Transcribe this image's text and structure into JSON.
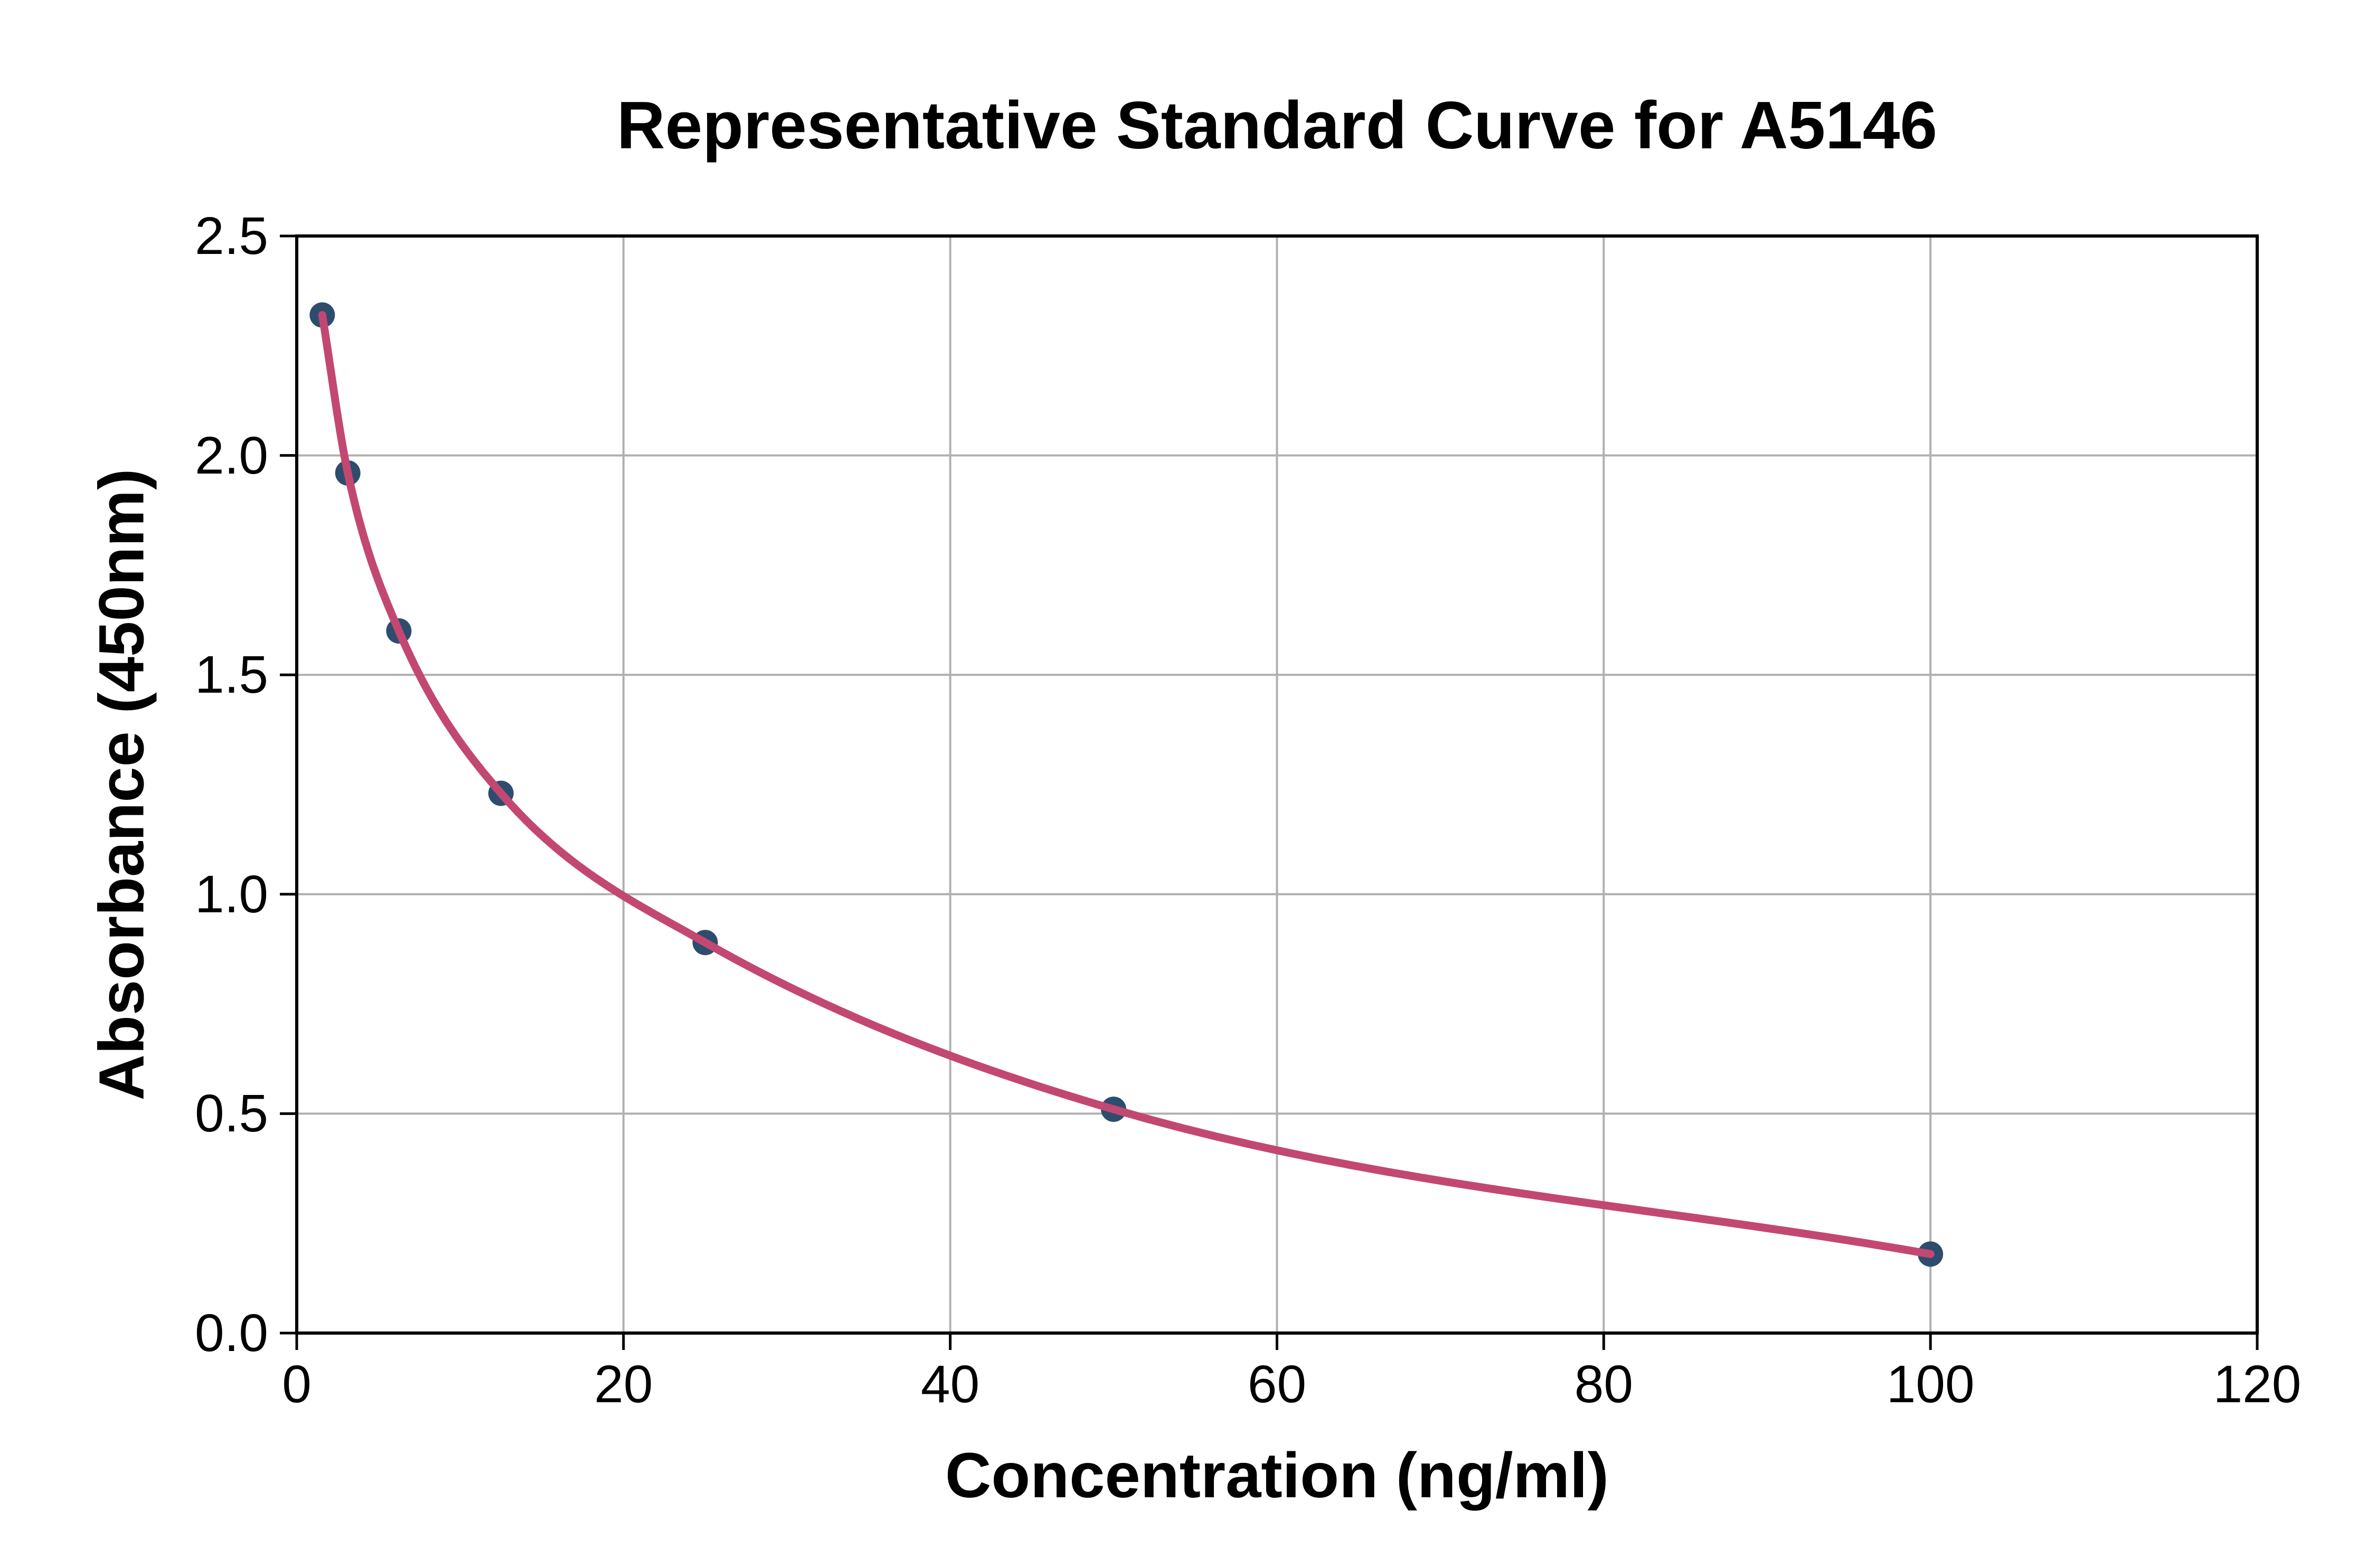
{
  "chart_data": {
    "type": "scatter",
    "title": "Representative Standard Curve for A5146",
    "xlabel": "Concentration (ng/ml)",
    "ylabel": "Absorbance (450nm)",
    "xlim": [
      0,
      120
    ],
    "ylim": [
      0.0,
      2.5
    ],
    "x_ticks": [
      0,
      20,
      40,
      60,
      80,
      100,
      120
    ],
    "x_tick_labels": [
      "0",
      "20",
      "40",
      "60",
      "80",
      "100",
      "120"
    ],
    "y_ticks": [
      0.0,
      0.5,
      1.0,
      1.5,
      2.0,
      2.5
    ],
    "y_tick_labels": [
      "0.0",
      "0.5",
      "1.0",
      "1.5",
      "2.0",
      "2.5"
    ],
    "grid": true,
    "legend": null,
    "series": [
      {
        "name": "standard-points",
        "marker": "circle",
        "points": [
          [
            1.5625,
            2.32
          ],
          [
            3.125,
            1.96
          ],
          [
            6.25,
            1.6
          ],
          [
            12.5,
            1.23
          ],
          [
            25,
            0.89
          ],
          [
            50,
            0.51
          ],
          [
            100,
            0.18
          ]
        ]
      },
      {
        "name": "fitted-curve",
        "marker": "none",
        "note": "smooth 4PL-style fit through the standard points, drawn from x=1.5625 to x=100"
      }
    ],
    "colors": {
      "marker": "#2e4d6e",
      "curve": "#c24872",
      "grid": "#b0b0b0",
      "axis": "#000000",
      "background": "#ffffff"
    }
  }
}
